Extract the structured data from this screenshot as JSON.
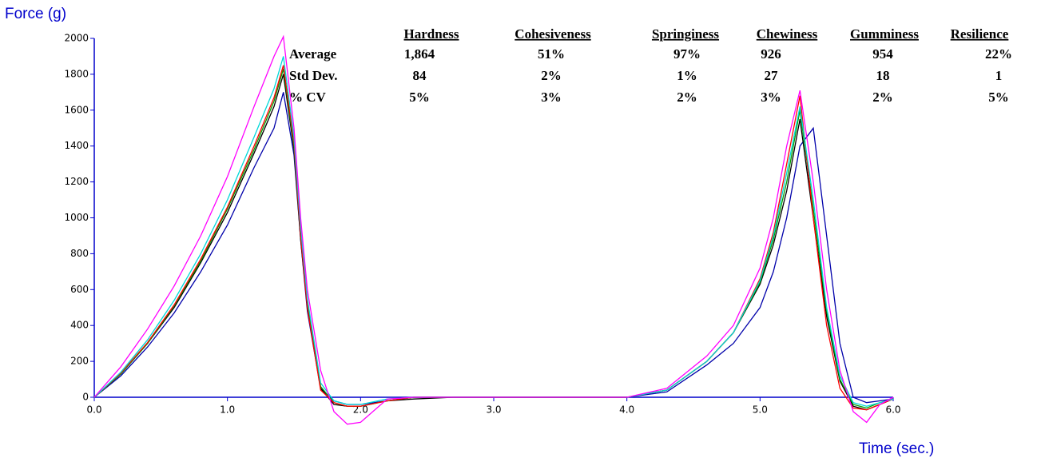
{
  "chart_data": {
    "type": "line",
    "y_label": "Force (g)",
    "x_label": "Time (sec.)",
    "xlim": [
      0,
      6
    ],
    "ylim": [
      0,
      2000
    ],
    "xticks": [
      {
        "value": 0,
        "label": "0.0"
      },
      {
        "value": 1,
        "label": "1.0"
      },
      {
        "value": 2,
        "label": "2.0"
      },
      {
        "value": 3,
        "label": "3.0"
      },
      {
        "value": 4,
        "label": "4.0"
      },
      {
        "value": 5,
        "label": "5.0"
      },
      {
        "value": 6,
        "label": "6.0"
      }
    ],
    "yticks": [
      0,
      200,
      400,
      600,
      800,
      1000,
      1200,
      1400,
      1600,
      1800,
      2000
    ],
    "axis_color": "#0000cc",
    "x": [
      0,
      0.2,
      0.4,
      0.6,
      0.8,
      1.0,
      1.2,
      1.35,
      1.42,
      1.5,
      1.55,
      1.6,
      1.7,
      1.8,
      1.9,
      2.0,
      2.2,
      2.4,
      2.7,
      3.0,
      3.5,
      4.0,
      4.3,
      4.6,
      4.8,
      5.0,
      5.1,
      5.2,
      5.3,
      5.4,
      5.5,
      5.6,
      5.7,
      5.8,
      5.9,
      6.0
    ],
    "series": [
      {
        "color": "#0000aa",
        "values": [
          0,
          120,
          280,
          470,
          700,
          960,
          1280,
          1500,
          1700,
          1350,
          880,
          480,
          50,
          -20,
          -40,
          -40,
          -20,
          0,
          0,
          0,
          0,
          0,
          30,
          180,
          300,
          500,
          700,
          1000,
          1400,
          1500,
          900,
          300,
          0,
          -30,
          -20,
          -10
        ]
      },
      {
        "color": "#000000",
        "values": [
          0,
          130,
          300,
          500,
          750,
          1030,
          1360,
          1620,
          1800,
          1380,
          880,
          500,
          50,
          -40,
          -50,
          -50,
          -20,
          -10,
          0,
          0,
          0,
          0,
          40,
          200,
          360,
          630,
          850,
          1150,
          1550,
          1000,
          450,
          90,
          -50,
          -70,
          -40,
          -10
        ]
      },
      {
        "color": "#00a000",
        "values": [
          0,
          130,
          300,
          510,
          760,
          1050,
          1380,
          1650,
          1830,
          1400,
          900,
          520,
          60,
          -30,
          -50,
          -50,
          -20,
          0,
          0,
          0,
          0,
          0,
          40,
          200,
          360,
          640,
          880,
          1200,
          1600,
          1050,
          480,
          100,
          -40,
          -60,
          -30,
          -10
        ]
      },
      {
        "color": "#ff0000",
        "values": [
          0,
          135,
          305,
          515,
          770,
          1060,
          1400,
          1670,
          1850,
          1420,
          900,
          500,
          40,
          -30,
          -50,
          -50,
          -20,
          0,
          0,
          0,
          0,
          0,
          40,
          200,
          360,
          660,
          920,
          1300,
          1680,
          1000,
          400,
          50,
          -60,
          -70,
          -40,
          -10
        ]
      },
      {
        "color": "#00d8d8",
        "values": [
          0,
          140,
          320,
          540,
          800,
          1100,
          1450,
          1720,
          1900,
          1450,
          950,
          550,
          80,
          -20,
          -40,
          -40,
          -10,
          0,
          0,
          0,
          0,
          0,
          40,
          200,
          360,
          650,
          900,
          1250,
          1620,
          1100,
          500,
          120,
          -30,
          -50,
          -30,
          -10
        ]
      },
      {
        "color": "#ff00ff",
        "values": [
          0,
          170,
          380,
          620,
          900,
          1230,
          1620,
          1900,
          2010,
          1500,
          1000,
          600,
          150,
          -80,
          -150,
          -140,
          -10,
          0,
          0,
          0,
          0,
          0,
          50,
          230,
          400,
          720,
          1000,
          1400,
          1710,
          1200,
          600,
          150,
          -80,
          -140,
          -40,
          0
        ]
      }
    ]
  },
  "stats_table": {
    "columns": [
      "Hardness",
      "Cohesiveness",
      "Springiness",
      "Chewiness",
      "Gumminess",
      "Resilience"
    ],
    "rows": [
      {
        "label": "Average",
        "values": [
          "1,864",
          "51%",
          "97%",
          "926",
          "954",
          "22%"
        ]
      },
      {
        "label": "Std Dev.",
        "values": [
          "84",
          "2%",
          "1%",
          "27",
          "18",
          "1"
        ]
      },
      {
        "label": "% CV",
        "values": [
          "5%",
          "3%",
          "2%",
          "3%",
          "2%",
          "5%"
        ]
      }
    ]
  }
}
